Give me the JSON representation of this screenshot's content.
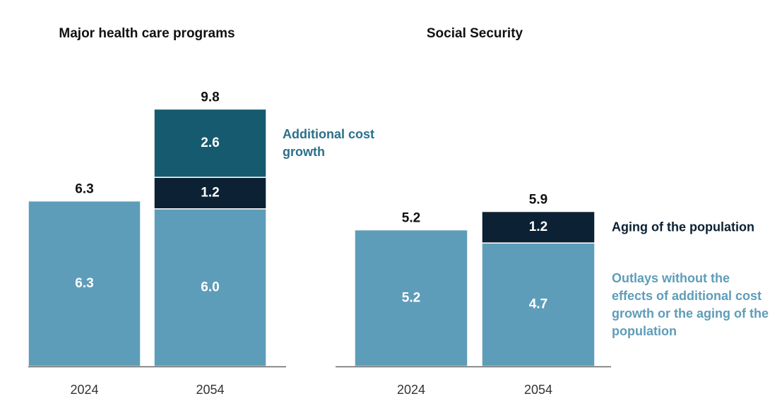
{
  "chart_data": [
    {
      "type": "bar",
      "stacked": true,
      "title": "Major health care programs",
      "categories": [
        "2024",
        "2054"
      ],
      "totals": [
        6.3,
        9.8
      ],
      "series": [
        {
          "color": "#5e9db9",
          "values": [
            6.3,
            6.0
          ],
          "value_labels": [
            "6.3",
            "6.0"
          ]
        },
        {
          "color": "#0c2133",
          "values": [
            null,
            1.2
          ],
          "value_labels": [
            null,
            "1.2"
          ]
        },
        {
          "name": "Additional cost growth",
          "color": "#165a6f",
          "label_color": "#2b7089",
          "values": [
            null,
            2.6
          ],
          "value_labels": [
            null,
            "2.6"
          ]
        }
      ]
    },
    {
      "type": "bar",
      "stacked": true,
      "title": "Social Security",
      "categories": [
        "2024",
        "2054"
      ],
      "totals": [
        5.2,
        5.9
      ],
      "series": [
        {
          "name": "Outlays without the effects of additional cost growth or the aging of the population",
          "color": "#5e9db9",
          "label_color": "#5e9db9",
          "values": [
            5.2,
            4.7
          ],
          "value_labels": [
            "5.2",
            "4.7"
          ]
        },
        {
          "name": "Aging of the population",
          "color": "#0c2133",
          "label_color": "#0c2133",
          "values": [
            null,
            1.2
          ],
          "value_labels": [
            null,
            "1.2"
          ]
        }
      ]
    }
  ]
}
